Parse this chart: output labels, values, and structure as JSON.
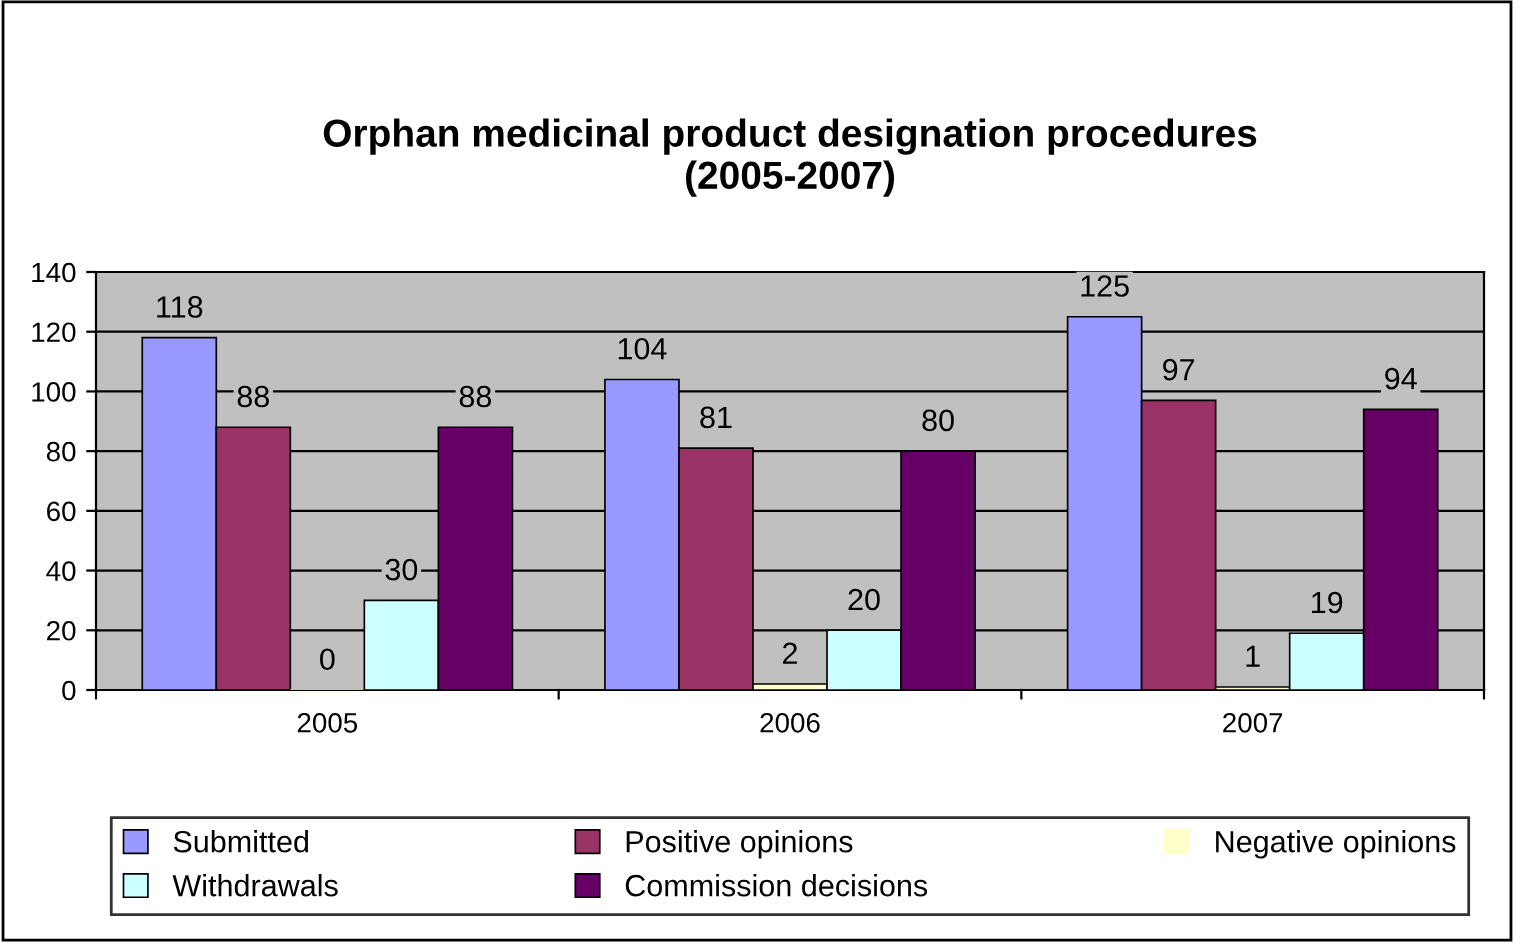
{
  "chart_data": {
    "type": "bar",
    "title": "Orphan medicinal product designation procedures\n(2005-2007)",
    "categories": [
      "2005",
      "2006",
      "2007"
    ],
    "series": [
      {
        "name": "Submitted",
        "color": "#9999ff",
        "values": [
          118,
          104,
          125
        ]
      },
      {
        "name": "Positive opinions",
        "color": "#993366",
        "values": [
          88,
          81,
          97
        ]
      },
      {
        "name": "Negative opinions",
        "color": "#ffffcc",
        "values": [
          0,
          2,
          1
        ]
      },
      {
        "name": "Withdrawals",
        "color": "#ccffff",
        "values": [
          30,
          20,
          19
        ]
      },
      {
        "name": "Commission decisions",
        "color": "#660066",
        "values": [
          88,
          80,
          94
        ]
      }
    ],
    "ylim": [
      0,
      140
    ],
    "yticks": [
      0,
      20,
      40,
      60,
      80,
      100,
      120,
      140
    ],
    "grid": "y",
    "legend": "bottom",
    "data_labels": true
  }
}
